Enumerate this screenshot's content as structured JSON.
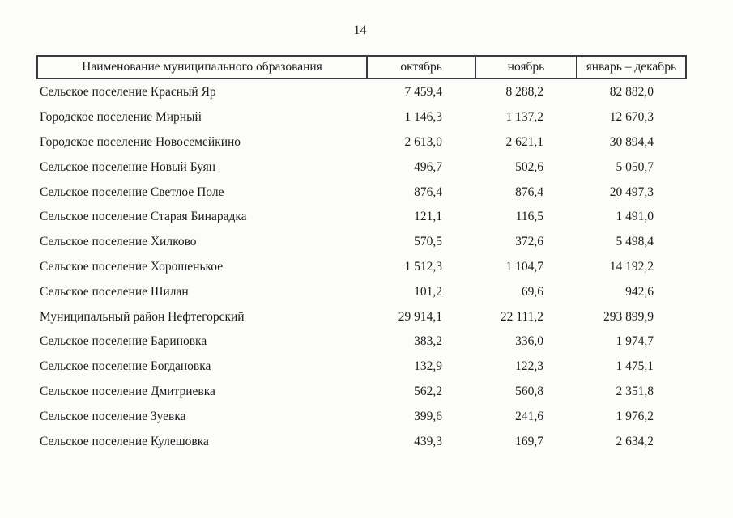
{
  "page": {
    "number": "14"
  },
  "table": {
    "headers": {
      "name": "Наименование муниципального образования",
      "october": "октябрь",
      "november": "ноябрь",
      "jan_dec": "январь – декабрь"
    },
    "rows": [
      {
        "name": "Сельское поселение Красный Яр",
        "oct": "7 459,4",
        "nov": "8 288,2",
        "jan_dec": "82 882,0"
      },
      {
        "name": "Городское поселение Мирный",
        "oct": "1 146,3",
        "nov": "1 137,2",
        "jan_dec": "12 670,3"
      },
      {
        "name": "Городское поселение Новосемейкино",
        "oct": "2 613,0",
        "nov": "2 621,1",
        "jan_dec": "30 894,4"
      },
      {
        "name": "Сельское поселение Новый Буян",
        "oct": "496,7",
        "nov": "502,6",
        "jan_dec": "5 050,7"
      },
      {
        "name": "Сельское поселение Светлое Поле",
        "oct": "876,4",
        "nov": "876,4",
        "jan_dec": "20 497,3"
      },
      {
        "name": "Сельское поселение Старая Бинарадка",
        "oct": "121,1",
        "nov": "116,5",
        "jan_dec": "1 491,0"
      },
      {
        "name": "Сельское поселение Хилково",
        "oct": "570,5",
        "nov": "372,6",
        "jan_dec": "5 498,4"
      },
      {
        "name": "Сельское поселение Хорошенькое",
        "oct": "1 512,3",
        "nov": "1 104,7",
        "jan_dec": "14 192,2"
      },
      {
        "name": "Сельское поселение Шилан",
        "oct": "101,2",
        "nov": "69,6",
        "jan_dec": "942,6"
      },
      {
        "name": "Муниципальный район Нефтегорский",
        "oct": "29 914,1",
        "nov": "22 111,2",
        "jan_dec": "293 899,9"
      },
      {
        "name": "Сельское поселение Бариновка",
        "oct": "383,2",
        "nov": "336,0",
        "jan_dec": "1 974,7"
      },
      {
        "name": "Сельское поселение Богдановка",
        "oct": "132,9",
        "nov": "122,3",
        "jan_dec": "1 475,1"
      },
      {
        "name": "Сельское поселение Дмитриевка",
        "oct": "562,2",
        "nov": "560,8",
        "jan_dec": "2 351,8"
      },
      {
        "name": "Сельское поселение Зуевка",
        "oct": "399,6",
        "nov": "241,6",
        "jan_dec": "1 976,2"
      },
      {
        "name": "Сельское поселение Кулешовка",
        "oct": "439,3",
        "nov": "169,7",
        "jan_dec": "2 634,2"
      }
    ]
  }
}
